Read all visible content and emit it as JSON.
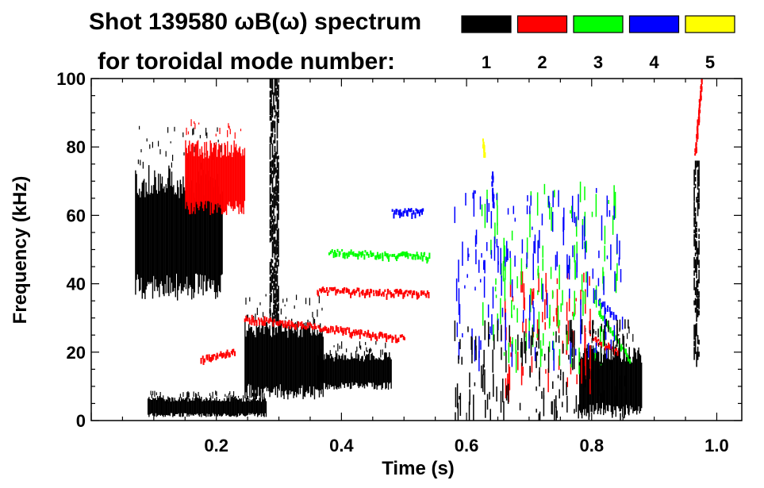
{
  "chart_data": {
    "type": "spectrogram",
    "title_line1": "Shot 139580 ωB(ω) spectrum",
    "title_line2": "for toroidal mode number:",
    "xlabel": "Time (s)",
    "ylabel": "Frequency (kHz)",
    "xlim": [
      0.0,
      1.04
    ],
    "ylim": [
      0,
      100
    ],
    "xticks": [
      {
        "value": 0.2,
        "label": "0.2"
      },
      {
        "value": 0.4,
        "label": "0.4"
      },
      {
        "value": 0.6,
        "label": "0.6"
      },
      {
        "value": 0.8,
        "label": "0.8"
      },
      {
        "value": 1.0,
        "label": "1.0"
      }
    ],
    "yticks": [
      {
        "value": 0,
        "label": "0"
      },
      {
        "value": 20,
        "label": "20"
      },
      {
        "value": 40,
        "label": "40"
      },
      {
        "value": 60,
        "label": "60"
      },
      {
        "value": 80,
        "label": "80"
      },
      {
        "value": 100,
        "label": "100"
      }
    ],
    "legend": [
      {
        "n": "1",
        "color": "#000000"
      },
      {
        "n": "2",
        "color": "#ff0000"
      },
      {
        "n": "3",
        "color": "#00ff00"
      },
      {
        "n": "4",
        "color": "#0000ff"
      },
      {
        "n": "5",
        "color": "#ffff00"
      }
    ],
    "features": [
      {
        "mode": "1",
        "shape": "band",
        "t": [
          0.07,
          0.21
        ],
        "f": [
          35,
          75
        ]
      },
      {
        "mode": "2",
        "shape": "band",
        "t": [
          0.15,
          0.245
        ],
        "f": [
          60,
          82
        ]
      },
      {
        "mode": "1",
        "shape": "band",
        "t": [
          0.245,
          0.37
        ],
        "f": [
          6,
          30
        ]
      },
      {
        "mode": "1",
        "shape": "band",
        "t": [
          0.36,
          0.48
        ],
        "f": [
          9,
          20
        ]
      },
      {
        "mode": "1",
        "shape": "band",
        "t": [
          0.78,
          0.88
        ],
        "f": [
          1,
          22
        ]
      },
      {
        "mode": "1",
        "shape": "band",
        "t": [
          0.09,
          0.28
        ],
        "f": [
          1,
          7
        ]
      },
      {
        "mode": "1",
        "shape": "column",
        "t": [
          0.285,
          0.3
        ],
        "f": [
          30,
          100
        ]
      },
      {
        "mode": "1",
        "shape": "column",
        "t": [
          0.963,
          0.972
        ],
        "f": [
          20,
          76
        ]
      },
      {
        "mode": "2",
        "shape": "line",
        "t": [
          0.245,
          0.5
        ],
        "f": [
          30,
          24
        ]
      },
      {
        "mode": "2",
        "shape": "line",
        "t": [
          0.36,
          0.54
        ],
        "f": [
          38,
          37
        ]
      },
      {
        "mode": "3",
        "shape": "line",
        "t": [
          0.38,
          0.54
        ],
        "f": [
          49,
          48
        ]
      },
      {
        "mode": "4",
        "shape": "line",
        "t": [
          0.48,
          0.53
        ],
        "f": [
          61,
          61
        ]
      },
      {
        "mode": "2",
        "shape": "line",
        "t": [
          0.965,
          0.975
        ],
        "f": [
          78,
          100
        ]
      },
      {
        "mode": "2",
        "shape": "line",
        "t": [
          0.175,
          0.23
        ],
        "f": [
          18,
          20
        ]
      },
      {
        "mode": "3",
        "shape": "line",
        "t": [
          0.81,
          0.86
        ],
        "f": [
          32,
          18
        ]
      },
      {
        "mode": "4",
        "shape": "line",
        "t": [
          0.81,
          0.84
        ],
        "f": [
          35,
          30
        ]
      },
      {
        "mode": "2",
        "shape": "line",
        "t": [
          0.8,
          0.84
        ],
        "f": [
          24,
          20
        ]
      },
      {
        "mode": "5",
        "shape": "line",
        "t": [
          0.625,
          0.628
        ],
        "f": [
          82,
          77
        ]
      },
      {
        "mode": "4",
        "shape": "line",
        "t": [
          0.64,
          0.642
        ],
        "f": [
          72,
          62
        ]
      },
      {
        "mode": "2",
        "shape": "scatter",
        "t": [
          0.66,
          0.8
        ],
        "f": [
          12,
          45
        ]
      },
      {
        "mode": "3",
        "shape": "scatter",
        "t": [
          0.62,
          0.84
        ],
        "f": [
          20,
          70
        ]
      },
      {
        "mode": "4",
        "shape": "scatter",
        "t": [
          0.58,
          0.85
        ],
        "f": [
          20,
          68
        ]
      },
      {
        "mode": "1",
        "shape": "scatter",
        "t": [
          0.58,
          0.86
        ],
        "f": [
          2,
          30
        ]
      }
    ]
  }
}
